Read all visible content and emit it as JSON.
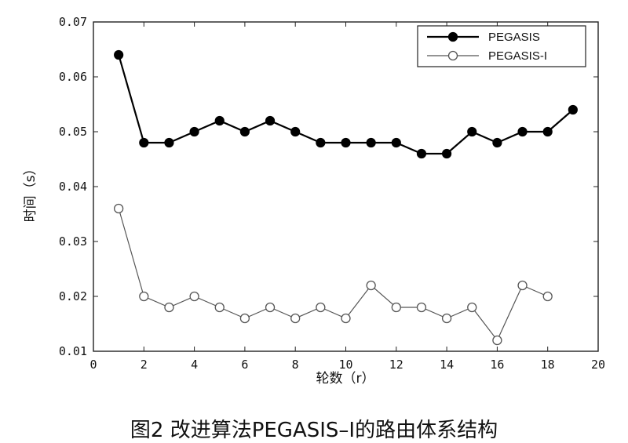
{
  "chart_data": {
    "type": "line",
    "caption": "图2  改进算法PEGASIS–I的路由体系结构",
    "xlabel": "轮数（r）",
    "ylabel": "时间（s）",
    "xlim": [
      0,
      20
    ],
    "ylim": [
      0.01,
      0.07
    ],
    "xticks": [
      0,
      2,
      4,
      6,
      8,
      10,
      12,
      14,
      16,
      18,
      20
    ],
    "yticks": [
      0.01,
      0.02,
      0.03,
      0.04,
      0.05,
      0.06,
      0.07
    ],
    "xtick_labels": [
      "0",
      "2",
      "4",
      "6",
      "8",
      "10",
      "12",
      "14",
      "16",
      "18",
      "20"
    ],
    "ytick_labels": [
      "0.01",
      "0.02",
      "0.03",
      "0.04",
      "0.05",
      "0.06",
      "0.07"
    ],
    "grid": false,
    "legend_position": "top-right",
    "series": [
      {
        "name": "PEGASIS",
        "marker": "filled-circle",
        "color": "#000000",
        "x": [
          1,
          2,
          3,
          4,
          5,
          6,
          7,
          8,
          9,
          10,
          11,
          12,
          13,
          14,
          15,
          16,
          17,
          18,
          19
        ],
        "y": [
          0.064,
          0.048,
          0.048,
          0.05,
          0.052,
          0.05,
          0.052,
          0.05,
          0.048,
          0.048,
          0.048,
          0.048,
          0.046,
          0.046,
          0.05,
          0.048,
          0.05,
          0.05,
          0.054
        ]
      },
      {
        "name": "PEGASIS-I",
        "marker": "open-circle",
        "color": "#555555",
        "x": [
          1,
          2,
          3,
          4,
          5,
          6,
          7,
          8,
          9,
          10,
          11,
          12,
          13,
          14,
          15,
          16,
          17,
          18
        ],
        "y": [
          0.036,
          0.02,
          0.018,
          0.02,
          0.018,
          0.016,
          0.018,
          0.016,
          0.018,
          0.016,
          0.022,
          0.018,
          0.018,
          0.016,
          0.018,
          0.012,
          0.022,
          0.02
        ]
      }
    ]
  }
}
